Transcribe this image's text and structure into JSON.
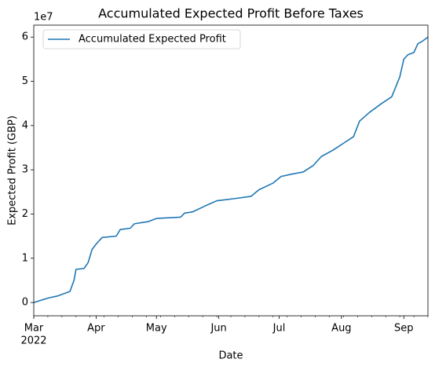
{
  "chart_data": {
    "type": "line",
    "title": "Accumulated Expected Profit Before Taxes",
    "x_label": "Date",
    "y_label": "Expected Profit  (GBP)",
    "y_offset_label": "1e7",
    "x_year_label": "2022",
    "legend": "upper left",
    "x": [
      "2022-03-01",
      "2022-03-08",
      "2022-03-13",
      "2022-03-19",
      "2022-03-21",
      "2022-03-22",
      "2022-03-26",
      "2022-03-28",
      "2022-03-30",
      "2022-04-01",
      "2022-04-04",
      "2022-04-11",
      "2022-04-13",
      "2022-04-18",
      "2022-04-20",
      "2022-04-27",
      "2022-05-01",
      "2022-05-13",
      "2022-05-15",
      "2022-05-19",
      "2022-05-26",
      "2022-05-31",
      "2022-06-09",
      "2022-06-17",
      "2022-06-21",
      "2022-06-28",
      "2022-07-02",
      "2022-07-07",
      "2022-07-13",
      "2022-07-18",
      "2022-07-22",
      "2022-07-28",
      "2022-08-02",
      "2022-08-07",
      "2022-08-10",
      "2022-08-15",
      "2022-08-21",
      "2022-08-26",
      "2022-08-30",
      "2022-09-01",
      "2022-09-03",
      "2022-09-06",
      "2022-09-08",
      "2022-09-10",
      "2022-09-13"
    ],
    "series": [
      {
        "name": "Accumulated Expected Profit",
        "color": "#1f77b4",
        "values": [
          0,
          0.1,
          0.15,
          0.25,
          0.5,
          0.75,
          0.77,
          0.9,
          1.2,
          1.32,
          1.47,
          1.5,
          1.65,
          1.68,
          1.78,
          1.83,
          1.9,
          1.93,
          2.02,
          2.05,
          2.2,
          2.3,
          2.35,
          2.4,
          2.55,
          2.7,
          2.85,
          2.9,
          2.95,
          3.1,
          3.3,
          3.45,
          3.6,
          3.75,
          4.1,
          4.3,
          4.5,
          4.65,
          5.1,
          5.5,
          5.6,
          5.65,
          5.85,
          5.9,
          6.0
        ]
      }
    ],
    "xlim": [
      "2022-03-01",
      "2022-09-13"
    ],
    "xticks": [
      {
        "value": "2022-03-01",
        "label": "Mar"
      },
      {
        "value": "2022-04-01",
        "label": "Apr"
      },
      {
        "value": "2022-05-01",
        "label": "May"
      },
      {
        "value": "2022-06-01",
        "label": "Jun"
      },
      {
        "value": "2022-07-01",
        "label": "Jul"
      },
      {
        "value": "2022-08-01",
        "label": "Aug"
      },
      {
        "value": "2022-09-01",
        "label": "Sep"
      }
    ],
    "ylim": [
      -0.3,
      6.27
    ],
    "yticks": [
      0,
      1,
      2,
      3,
      4,
      5,
      6
    ]
  }
}
